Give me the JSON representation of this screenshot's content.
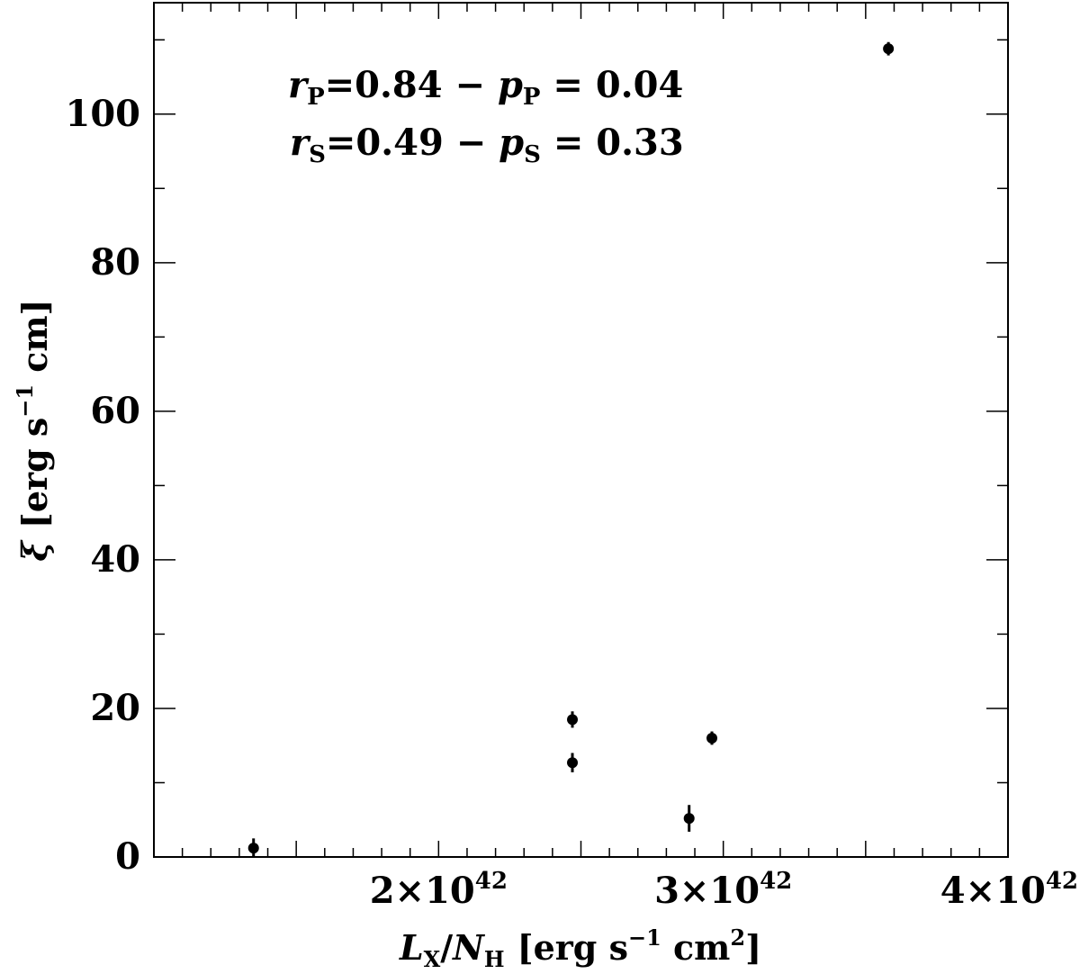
{
  "chart_data": {
    "type": "scatter",
    "xlabel": {
      "main": "L",
      "sub1": "X",
      "slash": "/",
      "main2": "N",
      "sub2": "H",
      "units": "[erg s",
      "sup1": "−1",
      "units2": " cm",
      "sup2": "2",
      "close": "]"
    },
    "ylabel": {
      "symbol": "ξ",
      "units": "[erg s",
      "sup": "−1",
      "units2": " cm]"
    },
    "xlim": [
      1e+42,
      4e+42
    ],
    "ylim": [
      0,
      115
    ],
    "x_ticks": [
      {
        "value": 2e+42,
        "mant": "2×10",
        "exp": "42"
      },
      {
        "value": 3e+42,
        "mant": "3×10",
        "exp": "42"
      },
      {
        "value": 4e+42,
        "mant": "4×10",
        "exp": "42"
      }
    ],
    "y_ticks": [
      {
        "value": 0,
        "label": "0"
      },
      {
        "value": 20,
        "label": "20"
      },
      {
        "value": 40,
        "label": "40"
      },
      {
        "value": 60,
        "label": "60"
      },
      {
        "value": 80,
        "label": "80"
      },
      {
        "value": 100,
        "label": "100"
      }
    ],
    "points": [
      {
        "x": 1.35e+42,
        "y": 1.2,
        "yerr": 1.3
      },
      {
        "x": 2.47e+42,
        "y": 12.7,
        "yerr": 1.3
      },
      {
        "x": 2.47e+42,
        "y": 18.5,
        "yerr": 1.1
      },
      {
        "x": 2.88e+42,
        "y": 5.2,
        "yerr": 1.8
      },
      {
        "x": 2.96e+42,
        "y": 16.0,
        "yerr": 0.9
      },
      {
        "x": 3.58e+42,
        "y": 108.8,
        "yerr": 0.9
      }
    ],
    "annotations": [
      {
        "r": "r",
        "rsub": "P",
        "rval": "=0.84 − ",
        "p": "p",
        "psub": "P",
        "pval": " = 0.04"
      },
      {
        "r": "r",
        "rsub": "S",
        "rval": "=0.49 − ",
        "p": "p",
        "psub": "S",
        "pval": " = 0.33"
      }
    ],
    "grid": false,
    "legend": "none"
  }
}
